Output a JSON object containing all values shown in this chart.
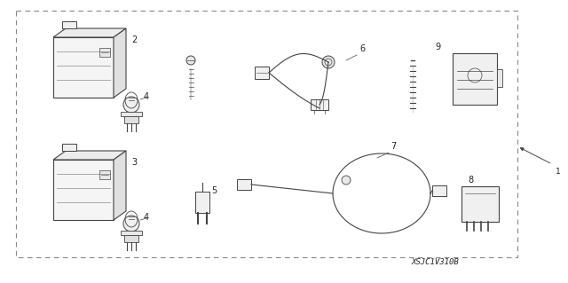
{
  "bg_color": "#ffffff",
  "line_color": "#444444",
  "text_color": "#222222",
  "dash_color": "#888888",
  "part_number": "XSJC1V310B",
  "fig_width": 6.4,
  "fig_height": 3.19,
  "dpi": 100
}
